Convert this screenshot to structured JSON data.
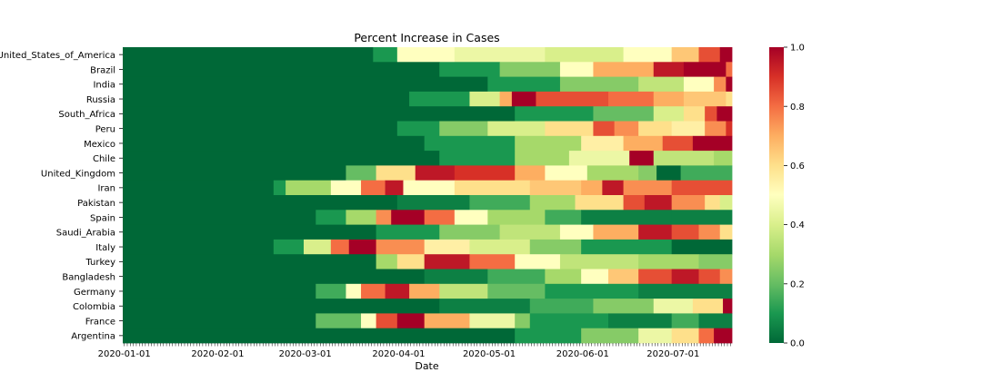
{
  "chart_data": {
    "type": "heatmap",
    "title": "Percent Increase in Cases",
    "xlabel": "Date",
    "ylabel": "",
    "x_range": [
      "2020-01-01",
      "2020-07-20"
    ],
    "x_ticks": [
      "2020-01-01",
      "2020-02-01",
      "2020-03-01",
      "2020-04-01",
      "2020-05-01",
      "2020-06-01",
      "2020-07-01"
    ],
    "colorbar": {
      "min": 0.0,
      "max": 1.0,
      "ticks": [
        "0.0",
        "0.2",
        "0.4",
        "0.6",
        "0.8",
        "1.0"
      ],
      "colormap": "RdYlGn_r"
    },
    "rows": [
      {
        "name": "United_States_of_America",
        "segments": [
          [
            "2020-01-01",
            0.0
          ],
          [
            "2020-03-24",
            0.1
          ],
          [
            "2020-04-01",
            0.5
          ],
          [
            "2020-04-20",
            0.45
          ],
          [
            "2020-05-20",
            0.4
          ],
          [
            "2020-06-15",
            0.5
          ],
          [
            "2020-07-01",
            0.65
          ],
          [
            "2020-07-10",
            0.85
          ],
          [
            "2020-07-17",
            1.0
          ]
        ]
      },
      {
        "name": "Brazil",
        "segments": [
          [
            "2020-01-01",
            0.0
          ],
          [
            "2020-04-15",
            0.1
          ],
          [
            "2020-05-05",
            0.25
          ],
          [
            "2020-05-25",
            0.5
          ],
          [
            "2020-06-05",
            0.7
          ],
          [
            "2020-06-25",
            0.95
          ],
          [
            "2020-07-05",
            1.0
          ],
          [
            "2020-07-19",
            0.8
          ]
        ]
      },
      {
        "name": "India",
        "segments": [
          [
            "2020-01-01",
            0.0
          ],
          [
            "2020-05-01",
            0.1
          ],
          [
            "2020-05-25",
            0.25
          ],
          [
            "2020-06-20",
            0.35
          ],
          [
            "2020-07-05",
            0.5
          ],
          [
            "2020-07-15",
            0.75
          ],
          [
            "2020-07-19",
            1.0
          ]
        ]
      },
      {
        "name": "Russia",
        "segments": [
          [
            "2020-01-01",
            0.0
          ],
          [
            "2020-04-05",
            0.1
          ],
          [
            "2020-04-25",
            0.4
          ],
          [
            "2020-05-05",
            0.7
          ],
          [
            "2020-05-09",
            1.0
          ],
          [
            "2020-05-17",
            0.85
          ],
          [
            "2020-06-10",
            0.8
          ],
          [
            "2020-06-25",
            0.7
          ],
          [
            "2020-07-05",
            0.65
          ],
          [
            "2020-07-19",
            0.6
          ]
        ]
      },
      {
        "name": "South_Africa",
        "segments": [
          [
            "2020-01-01",
            0.0
          ],
          [
            "2020-05-10",
            0.1
          ],
          [
            "2020-06-05",
            0.2
          ],
          [
            "2020-06-25",
            0.4
          ],
          [
            "2020-07-05",
            0.6
          ],
          [
            "2020-07-12",
            0.85
          ],
          [
            "2020-07-16",
            1.0
          ]
        ]
      },
      {
        "name": "Peru",
        "segments": [
          [
            "2020-01-01",
            0.0
          ],
          [
            "2020-04-01",
            0.1
          ],
          [
            "2020-04-15",
            0.25
          ],
          [
            "2020-05-01",
            0.4
          ],
          [
            "2020-05-20",
            0.6
          ],
          [
            "2020-06-05",
            0.85
          ],
          [
            "2020-06-12",
            0.75
          ],
          [
            "2020-06-20",
            0.6
          ],
          [
            "2020-07-01",
            0.55
          ],
          [
            "2020-07-12",
            0.75
          ],
          [
            "2020-07-19",
            0.9
          ]
        ]
      },
      {
        "name": "Mexico",
        "segments": [
          [
            "2020-01-01",
            0.0
          ],
          [
            "2020-04-10",
            0.1
          ],
          [
            "2020-05-10",
            0.3
          ],
          [
            "2020-06-01",
            0.55
          ],
          [
            "2020-06-15",
            0.7
          ],
          [
            "2020-06-28",
            0.85
          ],
          [
            "2020-07-08",
            1.0
          ]
        ]
      },
      {
        "name": "Chile",
        "segments": [
          [
            "2020-01-01",
            0.0
          ],
          [
            "2020-04-15",
            0.1
          ],
          [
            "2020-05-10",
            0.3
          ],
          [
            "2020-05-28",
            0.45
          ],
          [
            "2020-06-17",
            1.0
          ],
          [
            "2020-06-25",
            0.35
          ],
          [
            "2020-07-15",
            0.3
          ]
        ]
      },
      {
        "name": "United_Kingdom",
        "segments": [
          [
            "2020-01-01",
            0.0
          ],
          [
            "2020-03-15",
            0.2
          ],
          [
            "2020-03-25",
            0.6
          ],
          [
            "2020-04-07",
            0.95
          ],
          [
            "2020-04-20",
            0.9
          ],
          [
            "2020-05-10",
            0.7
          ],
          [
            "2020-05-20",
            0.5
          ],
          [
            "2020-06-03",
            0.3
          ],
          [
            "2020-06-20",
            0.25
          ],
          [
            "2020-06-26",
            0.0
          ],
          [
            "2020-07-04",
            0.15
          ]
        ]
      },
      {
        "name": "Iran",
        "segments": [
          [
            "2020-01-01",
            0.0
          ],
          [
            "2020-02-20",
            0.1
          ],
          [
            "2020-02-24",
            0.3
          ],
          [
            "2020-03-10",
            0.5
          ],
          [
            "2020-03-20",
            0.8
          ],
          [
            "2020-03-28",
            0.95
          ],
          [
            "2020-04-03",
            0.5
          ],
          [
            "2020-04-20",
            0.6
          ],
          [
            "2020-05-15",
            0.65
          ],
          [
            "2020-06-01",
            0.7
          ],
          [
            "2020-06-08",
            0.95
          ],
          [
            "2020-06-15",
            0.75
          ],
          [
            "2020-07-01",
            0.85
          ]
        ]
      },
      {
        "name": "Pakistan",
        "segments": [
          [
            "2020-01-01",
            0.0
          ],
          [
            "2020-04-01",
            0.05
          ],
          [
            "2020-04-25",
            0.15
          ],
          [
            "2020-05-15",
            0.3
          ],
          [
            "2020-05-30",
            0.6
          ],
          [
            "2020-06-15",
            0.85
          ],
          [
            "2020-06-22",
            0.95
          ],
          [
            "2020-07-01",
            0.75
          ],
          [
            "2020-07-12",
            0.6
          ],
          [
            "2020-07-17",
            0.4
          ]
        ]
      },
      {
        "name": "Spain",
        "segments": [
          [
            "2020-01-01",
            0.0
          ],
          [
            "2020-03-05",
            0.1
          ],
          [
            "2020-03-15",
            0.3
          ],
          [
            "2020-03-25",
            0.75
          ],
          [
            "2020-03-30",
            1.0
          ],
          [
            "2020-04-10",
            0.8
          ],
          [
            "2020-04-20",
            0.5
          ],
          [
            "2020-05-01",
            0.3
          ],
          [
            "2020-05-20",
            0.15
          ],
          [
            "2020-06-01",
            0.05
          ],
          [
            "2020-07-01",
            0.05
          ]
        ]
      },
      {
        "name": "Saudi_Arabia",
        "segments": [
          [
            "2020-01-01",
            0.0
          ],
          [
            "2020-03-25",
            0.1
          ],
          [
            "2020-04-15",
            0.25
          ],
          [
            "2020-05-05",
            0.35
          ],
          [
            "2020-05-25",
            0.5
          ],
          [
            "2020-06-05",
            0.7
          ],
          [
            "2020-06-20",
            0.95
          ],
          [
            "2020-07-01",
            0.85
          ],
          [
            "2020-07-10",
            0.75
          ],
          [
            "2020-07-17",
            0.6
          ]
        ]
      },
      {
        "name": "Italy",
        "segments": [
          [
            "2020-01-01",
            0.0
          ],
          [
            "2020-02-20",
            0.1
          ],
          [
            "2020-03-01",
            0.4
          ],
          [
            "2020-03-10",
            0.8
          ],
          [
            "2020-03-16",
            1.0
          ],
          [
            "2020-03-25",
            0.75
          ],
          [
            "2020-04-10",
            0.55
          ],
          [
            "2020-04-25",
            0.4
          ],
          [
            "2020-05-15",
            0.25
          ],
          [
            "2020-06-01",
            0.1
          ],
          [
            "2020-07-01",
            0.0
          ]
        ]
      },
      {
        "name": "Turkey",
        "segments": [
          [
            "2020-01-01",
            0.0
          ],
          [
            "2020-03-25",
            0.3
          ],
          [
            "2020-04-01",
            0.6
          ],
          [
            "2020-04-10",
            0.95
          ],
          [
            "2020-04-25",
            0.8
          ],
          [
            "2020-05-10",
            0.5
          ],
          [
            "2020-05-25",
            0.35
          ],
          [
            "2020-06-20",
            0.3
          ],
          [
            "2020-07-10",
            0.25
          ]
        ]
      },
      {
        "name": "Bangladesh",
        "segments": [
          [
            "2020-01-01",
            0.0
          ],
          [
            "2020-04-10",
            0.05
          ],
          [
            "2020-05-01",
            0.15
          ],
          [
            "2020-05-20",
            0.3
          ],
          [
            "2020-06-01",
            0.5
          ],
          [
            "2020-06-10",
            0.65
          ],
          [
            "2020-06-20",
            0.85
          ],
          [
            "2020-07-01",
            0.95
          ],
          [
            "2020-07-10",
            0.85
          ],
          [
            "2020-07-17",
            0.75
          ]
        ]
      },
      {
        "name": "Germany",
        "segments": [
          [
            "2020-01-01",
            0.0
          ],
          [
            "2020-03-05",
            0.15
          ],
          [
            "2020-03-15",
            0.5
          ],
          [
            "2020-03-20",
            0.8
          ],
          [
            "2020-03-28",
            0.95
          ],
          [
            "2020-04-05",
            0.7
          ],
          [
            "2020-04-15",
            0.35
          ],
          [
            "2020-05-01",
            0.2
          ],
          [
            "2020-05-20",
            0.1
          ],
          [
            "2020-06-20",
            0.05
          ]
        ]
      },
      {
        "name": "Colombia",
        "segments": [
          [
            "2020-01-01",
            0.0
          ],
          [
            "2020-04-15",
            0.05
          ],
          [
            "2020-05-15",
            0.15
          ],
          [
            "2020-06-05",
            0.25
          ],
          [
            "2020-06-25",
            0.45
          ],
          [
            "2020-07-08",
            0.6
          ],
          [
            "2020-07-18",
            1.0
          ]
        ]
      },
      {
        "name": "France",
        "segments": [
          [
            "2020-01-01",
            0.0
          ],
          [
            "2020-03-05",
            0.2
          ],
          [
            "2020-03-20",
            0.5
          ],
          [
            "2020-03-25",
            0.85
          ],
          [
            "2020-04-01",
            1.0
          ],
          [
            "2020-04-10",
            0.7
          ],
          [
            "2020-04-25",
            0.45
          ],
          [
            "2020-05-10",
            0.25
          ],
          [
            "2020-05-15",
            0.1
          ],
          [
            "2020-06-10",
            0.05
          ],
          [
            "2020-07-01",
            0.15
          ],
          [
            "2020-07-10",
            0.05
          ]
        ]
      },
      {
        "name": "Argentina",
        "segments": [
          [
            "2020-01-01",
            0.0
          ],
          [
            "2020-05-10",
            0.1
          ],
          [
            "2020-06-01",
            0.25
          ],
          [
            "2020-06-20",
            0.45
          ],
          [
            "2020-07-01",
            0.6
          ],
          [
            "2020-07-10",
            0.8
          ],
          [
            "2020-07-15",
            1.0
          ]
        ]
      }
    ]
  }
}
